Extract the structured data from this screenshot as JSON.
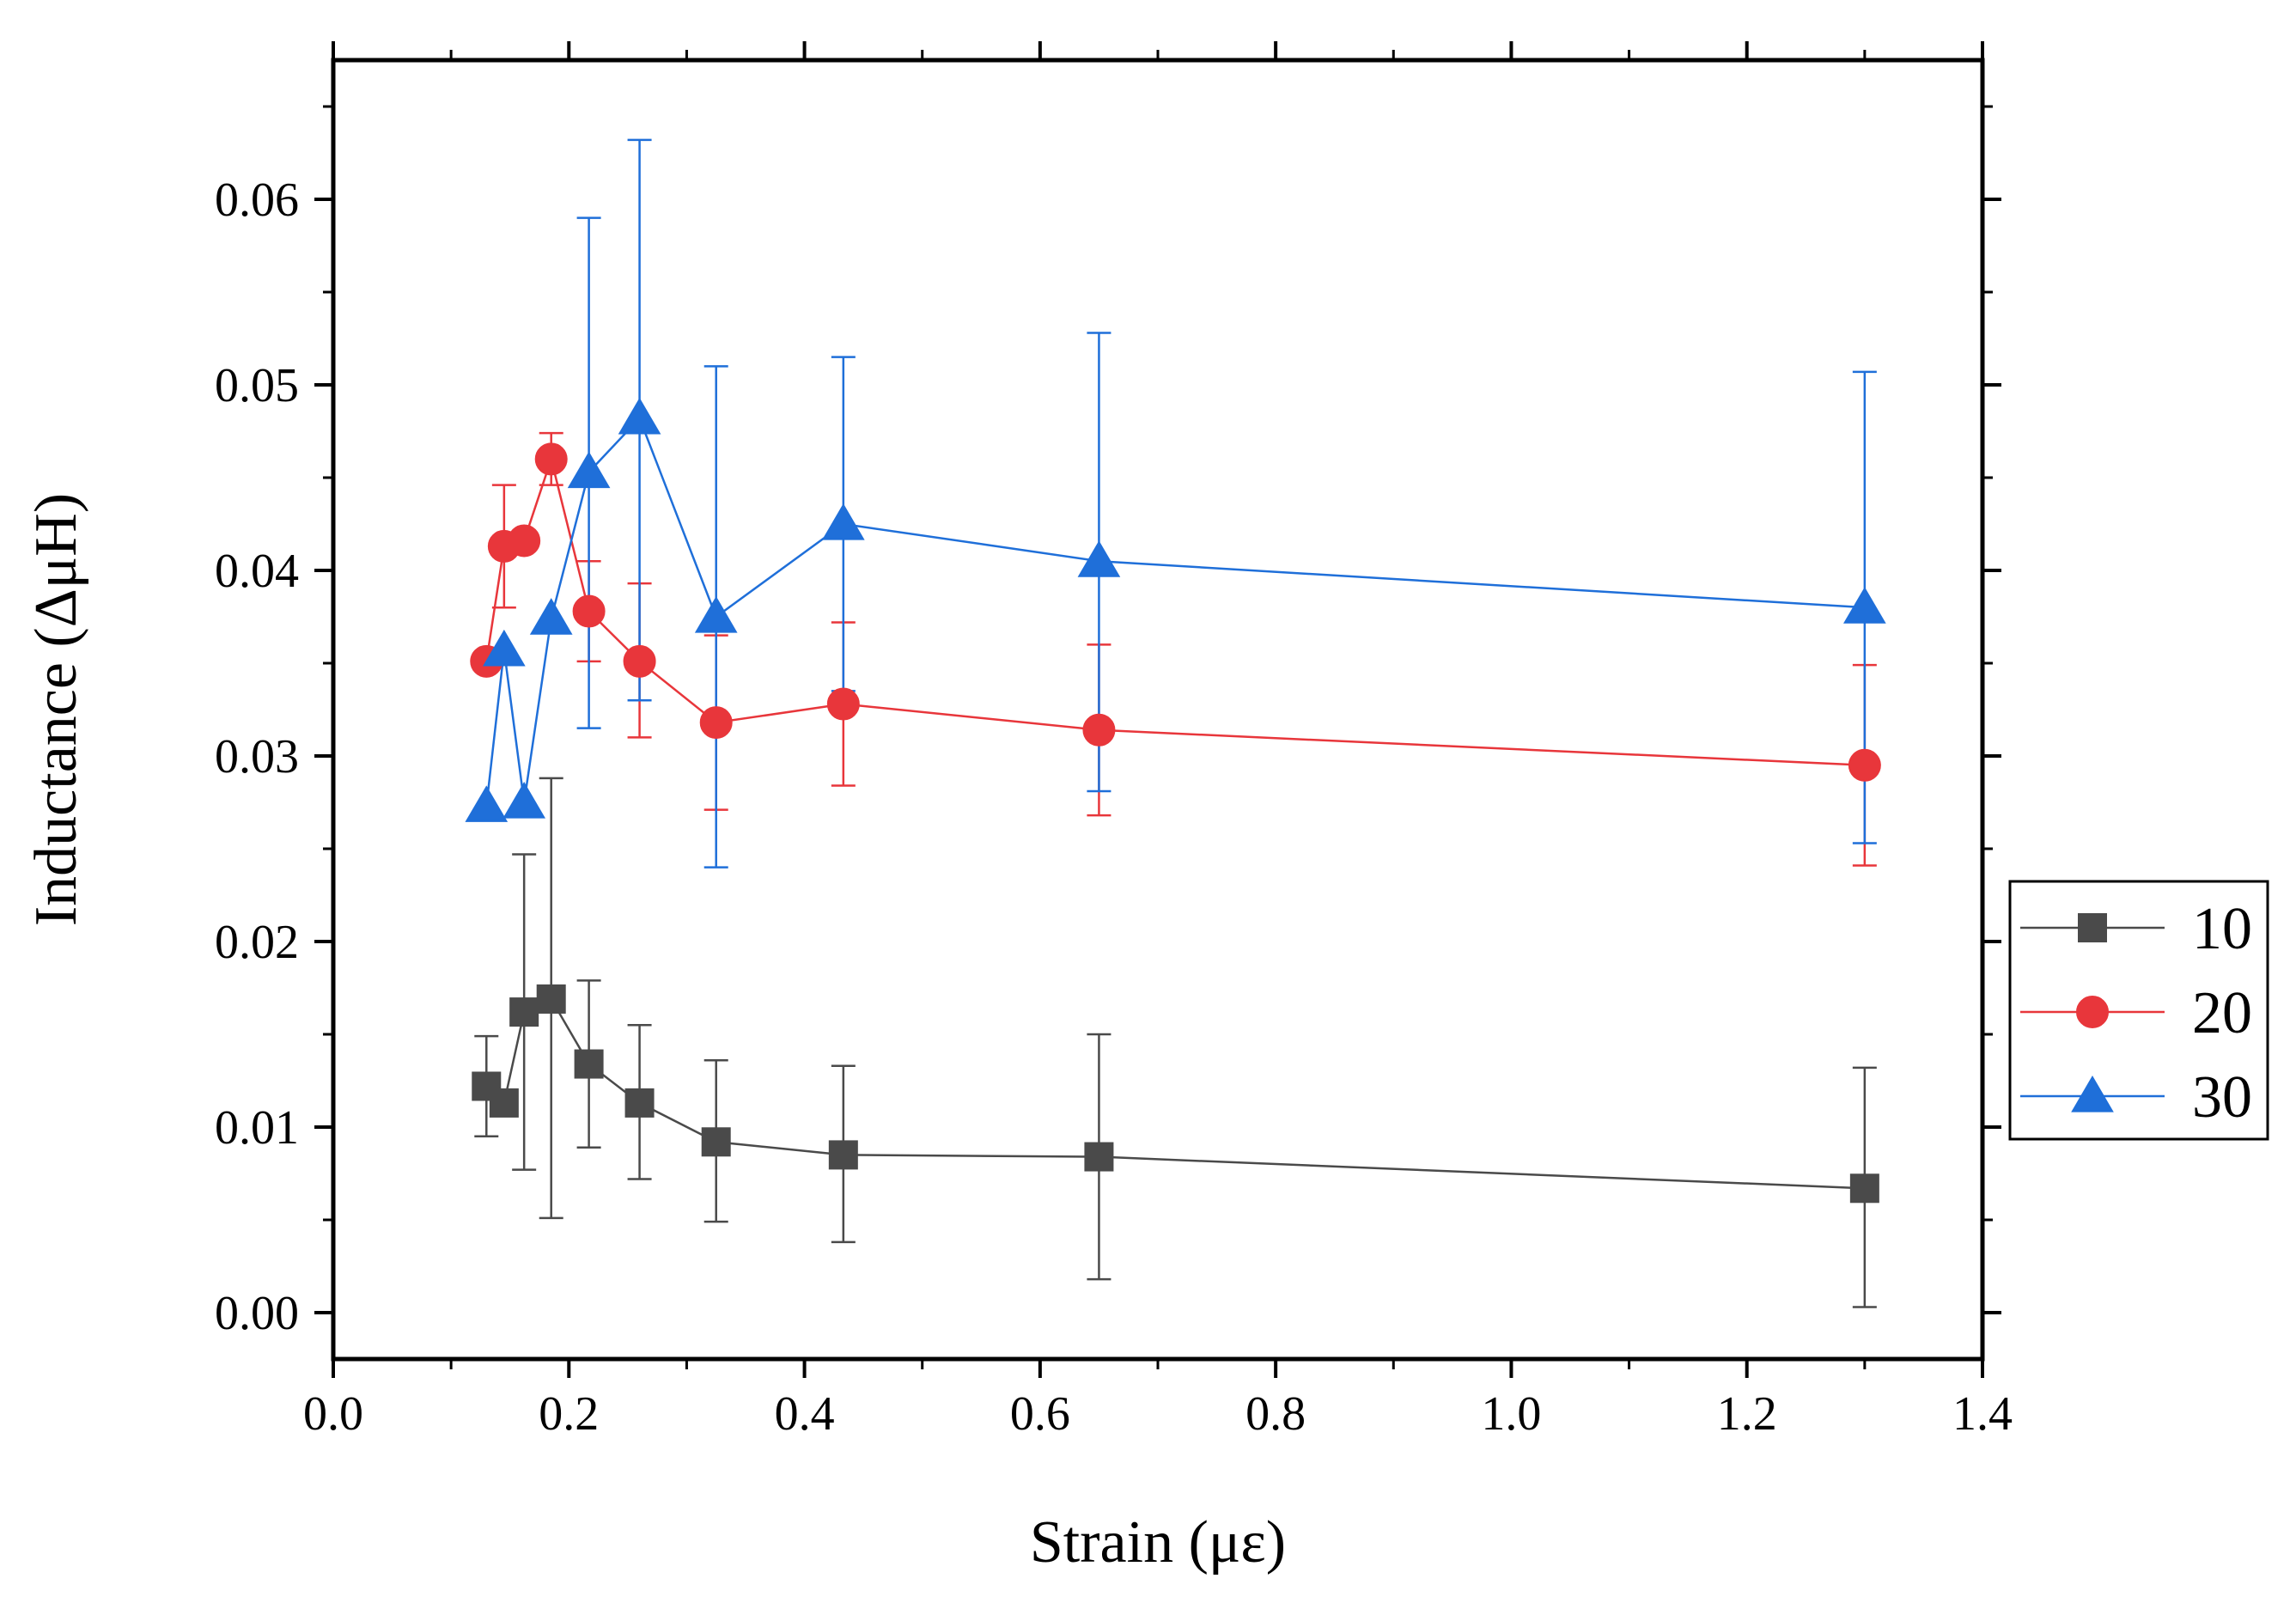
{
  "chart_data": {
    "type": "scatter",
    "xlabel": "Strain (με)",
    "ylabel": "Inductance (ΔμH)",
    "xlim": [
      0.0,
      1.4
    ],
    "ylim": [
      -0.0025,
      0.0675
    ],
    "x_ticks": [
      "0.0",
      "0.2",
      "0.4",
      "0.6",
      "0.8",
      "1.0",
      "1.2",
      "1.4"
    ],
    "y_ticks": [
      "0.00",
      "0.01",
      "0.02",
      "0.03",
      "0.04",
      "0.05",
      "0.06"
    ],
    "grid": false,
    "legend_position": "right",
    "series": [
      {
        "name": "10",
        "color": "#4a4a4a",
        "marker": "square",
        "x": [
          0.13,
          0.145,
          0.162,
          0.185,
          0.217,
          0.26,
          0.325,
          0.433,
          0.65,
          1.3
        ],
        "y": [
          0.0122,
          0.0113,
          0.0162,
          0.0169,
          0.0134,
          0.0113,
          0.0092,
          0.0085,
          0.0084,
          0.0067
        ],
        "err_upper": [
          0.0149,
          0.012,
          0.0247,
          0.0288,
          0.0179,
          0.0155,
          0.0136,
          0.0133,
          0.015,
          0.0132
        ],
        "err_lower": [
          0.0095,
          0.0106,
          0.0077,
          0.0051,
          0.0089,
          0.0072,
          0.0049,
          0.0038,
          0.0018,
          0.0003
        ]
      },
      {
        "name": "20",
        "color": "#e8363b",
        "marker": "circle",
        "x": [
          0.13,
          0.145,
          0.162,
          0.185,
          0.217,
          0.26,
          0.325,
          0.433,
          0.65,
          1.3
        ],
        "y": [
          0.0351,
          0.0413,
          0.0416,
          0.046,
          0.0378,
          0.0351,
          0.0318,
          0.0328,
          0.0314,
          0.0295
        ],
        "err_upper": [
          0.0355,
          0.0446,
          0.042,
          0.0474,
          0.0405,
          0.0393,
          0.0365,
          0.0372,
          0.036,
          0.0349
        ],
        "err_lower": [
          0.0347,
          0.038,
          0.0412,
          0.0446,
          0.0351,
          0.031,
          0.0271,
          0.0284,
          0.0268,
          0.0241
        ]
      },
      {
        "name": "30",
        "color": "#1f6fd9",
        "marker": "triangle",
        "x": [
          0.13,
          0.145,
          0.162,
          0.185,
          0.217,
          0.26,
          0.325,
          0.433,
          0.65,
          1.3
        ],
        "y": [
          0.0273,
          0.0357,
          0.0275,
          0.0374,
          0.0453,
          0.0482,
          0.0375,
          0.0425,
          0.0405,
          0.038
        ],
        "err_upper": [
          0.0273,
          0.0357,
          0.0275,
          0.0374,
          0.059,
          0.0632,
          0.051,
          0.0515,
          0.0528,
          0.0507
        ],
        "err_lower": [
          0.0273,
          0.0357,
          0.0275,
          0.0374,
          0.0315,
          0.033,
          0.024,
          0.0335,
          0.0281,
          0.0253
        ]
      }
    ]
  }
}
